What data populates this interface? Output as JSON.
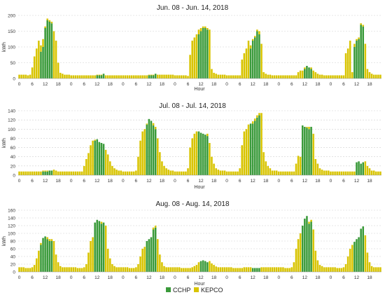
{
  "chart_data": [
    {
      "type": "bar",
      "stacked": true,
      "title": "Jun. 08 - Jun. 14, 2018",
      "xlabel": "Hour",
      "ylabel": "kWh",
      "ylim": [
        0,
        200
      ],
      "yticks": [
        0,
        50,
        100,
        150,
        200
      ],
      "grid": "horizontal dashed",
      "xtick_labels": [
        "0",
        "6",
        "12",
        "18",
        "0",
        "6",
        "12",
        "18",
        "0",
        "6",
        "12",
        "18",
        "0",
        "6",
        "12",
        "18",
        "0",
        "6",
        "12",
        "18",
        "0",
        "6",
        "12",
        "18",
        "0",
        "6",
        "12",
        "18"
      ],
      "series": [
        {
          "name": "CCHP",
          "color": "#3a9a3a",
          "values": [
            0,
            0,
            0,
            0,
            0,
            0,
            0,
            0,
            0,
            0,
            85,
            100,
            160,
            185,
            180,
            175,
            0,
            0,
            0,
            0,
            0,
            0,
            0,
            0,
            0,
            0,
            0,
            0,
            0,
            0,
            0,
            0,
            0,
            0,
            0,
            0,
            10,
            10,
            10,
            15,
            0,
            0,
            0,
            0,
            0,
            0,
            0,
            0,
            0,
            0,
            0,
            0,
            0,
            0,
            0,
            0,
            0,
            0,
            0,
            0,
            10,
            10,
            10,
            15,
            0,
            0,
            0,
            0,
            0,
            0,
            0,
            0,
            0,
            0,
            0,
            0,
            0,
            0,
            0,
            0,
            0,
            0,
            0,
            140,
            150,
            160,
            160,
            155,
            0,
            0,
            0,
            0,
            0,
            0,
            0,
            0,
            0,
            0,
            0,
            0,
            0,
            0,
            0,
            0,
            0,
            0,
            0,
            95,
            120,
            130,
            150,
            140,
            0,
            0,
            0,
            0,
            0,
            0,
            0,
            0,
            0,
            0,
            0,
            0,
            0,
            0,
            0,
            0,
            0,
            0,
            0,
            0,
            30,
            40,
            35,
            30,
            0,
            0,
            0,
            0,
            0,
            0,
            0,
            0,
            0,
            0,
            0,
            0,
            0,
            0,
            0,
            0,
            0,
            0,
            0,
            100,
            120,
            125,
            170,
            165,
            0,
            0,
            0,
            0,
            0,
            0,
            0,
            0
          ]
        },
        {
          "name": "KEPCO",
          "color": "#d8c400",
          "values": [
            12,
            12,
            12,
            12,
            10,
            12,
            35,
            70,
            95,
            120,
            20,
            25,
            5,
            5,
            5,
            5,
            150,
            120,
            50,
            18,
            15,
            12,
            12,
            12,
            10,
            10,
            10,
            10,
            10,
            10,
            10,
            10,
            10,
            10,
            10,
            10,
            2,
            2,
            2,
            0,
            10,
            10,
            10,
            10,
            10,
            10,
            10,
            10,
            10,
            10,
            10,
            10,
            10,
            10,
            10,
            10,
            10,
            10,
            10,
            10,
            2,
            2,
            2,
            0,
            12,
            12,
            12,
            12,
            12,
            12,
            12,
            12,
            10,
            10,
            10,
            10,
            10,
            10,
            8,
            75,
            120,
            130,
            140,
            15,
            10,
            5,
            5,
            5,
            155,
            30,
            18,
            15,
            12,
            12,
            12,
            12,
            10,
            10,
            10,
            10,
            10,
            10,
            10,
            60,
            80,
            95,
            120,
            10,
            5,
            5,
            5,
            10,
            110,
            20,
            15,
            12,
            12,
            10,
            10,
            10,
            10,
            10,
            10,
            10,
            10,
            10,
            10,
            10,
            10,
            20,
            25,
            25,
            5,
            0,
            0,
            5,
            25,
            20,
            15,
            12,
            12,
            10,
            10,
            10,
            10,
            10,
            10,
            10,
            10,
            10,
            10,
            80,
            95,
            120,
            20,
            10,
            5,
            5,
            5,
            5,
            110,
            30,
            20,
            15,
            12,
            12,
            12,
            12
          ]
        }
      ]
    },
    {
      "type": "bar",
      "stacked": true,
      "title": "Jul. 08 - Jul. 14, 2018",
      "xlabel": "Hour",
      "ylabel": "kWh",
      "ylim": [
        0,
        140
      ],
      "yticks": [
        0,
        20,
        40,
        60,
        80,
        100,
        120,
        140
      ],
      "grid": "horizontal dashed",
      "xtick_labels": [
        "0",
        "6",
        "12",
        "18",
        "0",
        "6",
        "12",
        "18",
        "0",
        "6",
        "12",
        "18",
        "0",
        "6",
        "12",
        "18",
        "0",
        "6",
        "12",
        "18",
        "0",
        "6",
        "12",
        "18",
        "0",
        "6",
        "12",
        "18"
      ],
      "series": [
        {
          "name": "CCHP",
          "color": "#3a9a3a",
          "values": [
            0,
            0,
            0,
            0,
            0,
            0,
            0,
            0,
            0,
            0,
            0,
            8,
            8,
            8,
            10,
            10,
            0,
            0,
            0,
            0,
            0,
            0,
            0,
            0,
            0,
            0,
            0,
            0,
            0,
            0,
            0,
            0,
            0,
            0,
            0,
            75,
            78,
            72,
            70,
            68,
            0,
            0,
            0,
            0,
            0,
            0,
            0,
            0,
            0,
            0,
            0,
            0,
            0,
            0,
            0,
            0,
            0,
            0,
            0,
            110,
            122,
            118,
            108,
            100,
            0,
            0,
            0,
            0,
            0,
            0,
            0,
            0,
            0,
            0,
            0,
            0,
            0,
            0,
            0,
            0,
            0,
            0,
            0,
            95,
            92,
            90,
            88,
            85,
            0,
            0,
            0,
            0,
            0,
            0,
            0,
            0,
            0,
            0,
            0,
            0,
            0,
            0,
            0,
            0,
            0,
            0,
            0,
            112,
            112,
            118,
            125,
            130,
            0,
            0,
            0,
            0,
            0,
            0,
            0,
            0,
            0,
            0,
            0,
            0,
            0,
            0,
            0,
            0,
            0,
            0,
            0,
            108,
            105,
            103,
            100,
            105,
            0,
            0,
            0,
            0,
            0,
            0,
            0,
            0,
            0,
            0,
            0,
            0,
            0,
            0,
            0,
            0,
            0,
            0,
            0,
            0,
            28,
            30,
            25,
            28,
            0,
            0,
            0,
            0,
            0,
            0,
            0,
            0
          ]
        },
        {
          "name": "KEPCO",
          "color": "#d8c400",
          "values": [
            8,
            8,
            8,
            8,
            8,
            8,
            8,
            8,
            8,
            8,
            8,
            2,
            2,
            2,
            0,
            0,
            12,
            10,
            8,
            8,
            8,
            8,
            8,
            8,
            8,
            8,
            8,
            8,
            8,
            8,
            20,
            35,
            48,
            65,
            75,
            2,
            0,
            0,
            0,
            0,
            55,
            45,
            30,
            20,
            15,
            12,
            10,
            10,
            8,
            8,
            8,
            8,
            8,
            8,
            10,
            40,
            75,
            95,
            100,
            2,
            0,
            0,
            5,
            5,
            80,
            50,
            30,
            20,
            15,
            12,
            10,
            10,
            8,
            8,
            8,
            8,
            8,
            8,
            15,
            60,
            80,
            90,
            95,
            0,
            0,
            0,
            0,
            5,
            70,
            40,
            25,
            15,
            12,
            10,
            10,
            10,
            8,
            8,
            8,
            8,
            8,
            8,
            15,
            65,
            95,
            100,
            110,
            0,
            5,
            5,
            5,
            5,
            135,
            50,
            30,
            20,
            15,
            10,
            10,
            10,
            8,
            8,
            8,
            8,
            8,
            8,
            8,
            8,
            25,
            42,
            40,
            0,
            0,
            2,
            5,
            0,
            90,
            35,
            25,
            15,
            12,
            10,
            10,
            10,
            8,
            8,
            8,
            8,
            8,
            8,
            8,
            8,
            8,
            8,
            8,
            8,
            0,
            0,
            0,
            0,
            30,
            20,
            15,
            10,
            10,
            8,
            8,
            8
          ]
        }
      ]
    },
    {
      "type": "bar",
      "stacked": true,
      "title": "Aug. 08 - Aug. 14, 2018",
      "xlabel": "Hour",
      "ylabel": "kWh",
      "ylim": [
        0,
        160
      ],
      "yticks": [
        0,
        20,
        40,
        60,
        80,
        100,
        120,
        140,
        160
      ],
      "grid": "horizontal dashed",
      "xtick_labels": [
        "0",
        "6",
        "12",
        "18",
        "0",
        "6",
        "12",
        "18",
        "0",
        "6",
        "12",
        "18",
        "0",
        "6",
        "12",
        "18",
        "0",
        "6",
        "12",
        "18",
        "0",
        "6",
        "12",
        "18",
        "0",
        "6",
        "12",
        "18"
      ],
      "series": [
        {
          "name": "CCHP",
          "color": "#3a9a3a",
          "values": [
            0,
            0,
            0,
            0,
            0,
            0,
            0,
            0,
            0,
            0,
            70,
            88,
            92,
            85,
            80,
            80,
            0,
            0,
            0,
            0,
            0,
            0,
            0,
            0,
            0,
            0,
            0,
            0,
            0,
            0,
            0,
            0,
            0,
            0,
            0,
            128,
            135,
            132,
            125,
            128,
            0,
            0,
            0,
            0,
            0,
            0,
            0,
            0,
            0,
            0,
            0,
            0,
            0,
            0,
            0,
            0,
            0,
            0,
            0,
            80,
            85,
            90,
            110,
            115,
            0,
            0,
            0,
            0,
            0,
            0,
            0,
            0,
            0,
            0,
            0,
            0,
            0,
            0,
            0,
            0,
            0,
            0,
            0,
            0,
            28,
            30,
            28,
            25,
            0,
            0,
            0,
            0,
            0,
            0,
            0,
            0,
            0,
            0,
            0,
            0,
            0,
            0,
            0,
            0,
            0,
            0,
            0,
            0,
            10,
            10,
            10,
            10,
            0,
            0,
            0,
            0,
            0,
            0,
            0,
            0,
            0,
            0,
            0,
            0,
            0,
            0,
            0,
            0,
            0,
            0,
            0,
            120,
            138,
            145,
            125,
            130,
            0,
            0,
            0,
            0,
            0,
            0,
            0,
            0,
            0,
            0,
            0,
            0,
            0,
            0,
            0,
            0,
            0,
            0,
            0,
            78,
            85,
            90,
            112,
            118,
            0,
            0,
            0,
            0,
            0,
            0,
            0,
            0
          ]
        },
        {
          "name": "KEPCO",
          "color": "#d8c400",
          "values": [
            12,
            12,
            12,
            10,
            10,
            10,
            12,
            18,
            35,
            55,
            5,
            0,
            0,
            5,
            5,
            5,
            80,
            45,
            25,
            15,
            12,
            12,
            12,
            12,
            12,
            12,
            12,
            10,
            10,
            10,
            12,
            20,
            50,
            80,
            90,
            0,
            0,
            0,
            5,
            0,
            120,
            60,
            35,
            20,
            15,
            12,
            12,
            12,
            12,
            12,
            12,
            10,
            10,
            10,
            12,
            20,
            40,
            60,
            65,
            0,
            0,
            0,
            5,
            5,
            85,
            45,
            25,
            15,
            12,
            12,
            12,
            12,
            12,
            12,
            12,
            10,
            10,
            10,
            10,
            10,
            12,
            15,
            18,
            25,
            0,
            0,
            0,
            0,
            28,
            22,
            18,
            14,
            12,
            12,
            12,
            12,
            12,
            12,
            12,
            10,
            10,
            10,
            10,
            10,
            12,
            12,
            12,
            12,
            0,
            0,
            0,
            0,
            12,
            12,
            12,
            12,
            12,
            12,
            12,
            12,
            12,
            12,
            12,
            10,
            10,
            10,
            12,
            25,
            60,
            85,
            100,
            0,
            0,
            0,
            5,
            5,
            110,
            55,
            30,
            18,
            15,
            12,
            12,
            12,
            12,
            12,
            12,
            10,
            10,
            10,
            12,
            20,
            40,
            60,
            70,
            0,
            0,
            0,
            0,
            0,
            95,
            50,
            25,
            15,
            12,
            12,
            12,
            12
          ]
        }
      ]
    }
  ],
  "legend": [
    {
      "label": "CCHP",
      "color": "#3a9a3a"
    },
    {
      "label": "KEPCO",
      "color": "#d8c400"
    }
  ]
}
